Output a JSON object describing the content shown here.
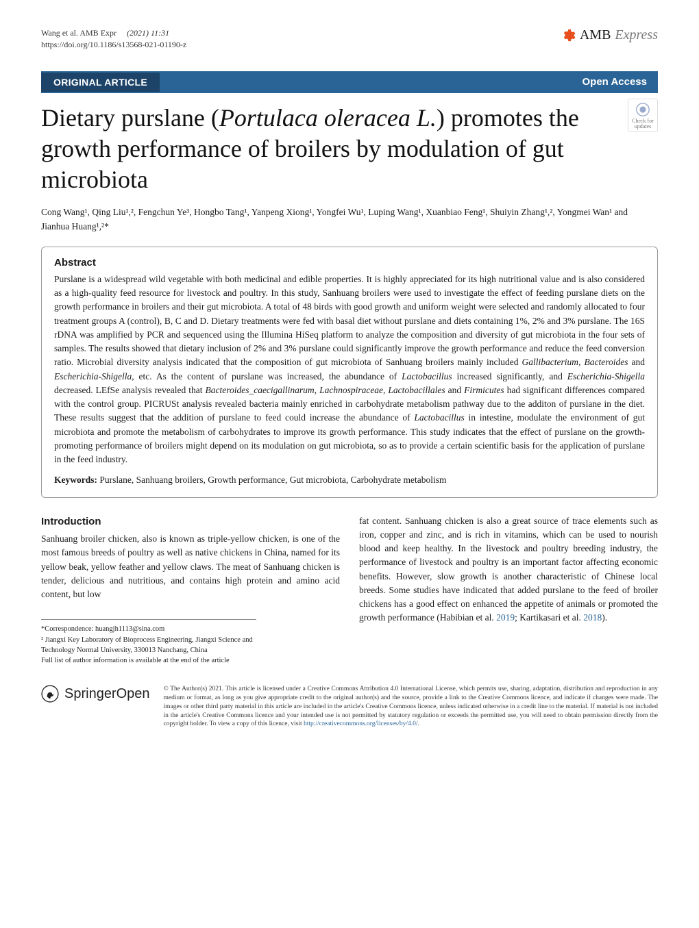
{
  "header": {
    "running_head": "Wang et al. AMB Expr",
    "year_volume": "(2021) 11:31",
    "doi": "https://doi.org/10.1186/s13568-021-01190-z",
    "journal_name_a": "AMB",
    "journal_name_b": "Express"
  },
  "band": {
    "section_label": "ORIGINAL ARTICLE",
    "open_access": "Open Access"
  },
  "title": {
    "pre": "Dietary purslane (",
    "italic": "Portulaca oleracea L.",
    "post": ") promotes the growth performance of broilers by modulation of gut microbiota"
  },
  "updates_badge": "Check for updates",
  "authors": "Cong Wang¹, Qing Liu¹,², Fengchun Ye³, Hongbo Tang¹, Yanpeng Xiong¹, Yongfei Wu¹, Luping Wang¹, Xuanbiao Feng¹, Shuiyin Zhang¹,², Yongmei Wan¹ and Jianhua Huang¹,²*",
  "abstract": {
    "heading": "Abstract",
    "text_parts": [
      {
        "t": "Purslane is a widespread wild vegetable with both medicinal and edible properties. It is highly appreciated for its high nutritional value and is also considered as a high-quality feed resource for livestock and poultry. In this study, Sanhuang broilers were used to investigate the effect of feeding purslane diets on the growth performance in broilers and their gut microbiota. A total of 48 birds with good growth and uniform weight were selected and randomly allocated to four treatment groups A (control), B, C and D. Dietary treatments were fed with basal diet without purslane and diets containing 1%, 2% and 3% purslane. The 16S rDNA was amplified by PCR and sequenced using the Illumina HiSeq platform to analyze the composition and diversity of gut microbiota in the four sets of samples. The results showed that dietary inclusion of 2% and 3% purslane could significantly improve the growth performance and reduce the feed conversion ratio. Microbial diversity analysis indicated that the composition of gut microbiota of Sanhuang broilers mainly included ",
        "i": false
      },
      {
        "t": "Gallibacterium",
        "i": true
      },
      {
        "t": ", ",
        "i": false
      },
      {
        "t": "Bacteroides",
        "i": true
      },
      {
        "t": " and ",
        "i": false
      },
      {
        "t": "Escherichia-Shigella",
        "i": true
      },
      {
        "t": ", etc. As the content of purslane was increased, the abundance of ",
        "i": false
      },
      {
        "t": "Lactobacillus",
        "i": true
      },
      {
        "t": " increased significantly, and ",
        "i": false
      },
      {
        "t": "Escherichia-Shigella",
        "i": true
      },
      {
        "t": " decreased. LEfSe analysis revealed that ",
        "i": false
      },
      {
        "t": "Bacteroides_caecigallinarum",
        "i": true
      },
      {
        "t": ", ",
        "i": false
      },
      {
        "t": "Lachnospiraceae",
        "i": true
      },
      {
        "t": ", ",
        "i": false
      },
      {
        "t": "Lactobacillales",
        "i": true
      },
      {
        "t": " and ",
        "i": false
      },
      {
        "t": "Firmicutes",
        "i": true
      },
      {
        "t": " had significant differences compared with the control group. PICRUSt analysis revealed bacteria mainly enriched in carbohydrate metabolism pathway due to the additon of purslane in the diet. These results suggest that the addition of purslane to feed could increase the abundance of ",
        "i": false
      },
      {
        "t": "Lactobacillus",
        "i": true
      },
      {
        "t": " in intestine, modulate the environment of gut microbiota and promote the metabolism of carbohydrates to improve its growth performance. This study indicates that the effect of purslane on the growth-promoting performance of broilers might depend on its modulation on gut microbiota, so as to provide a certain scientific basis for the application of purslane in the feed industry.",
        "i": false
      }
    ],
    "keywords_label": "Keywords:",
    "keywords": "Purslane, Sanhuang broilers, Growth performance, Gut microbiota, Carbohydrate metabolism"
  },
  "intro": {
    "heading": "Introduction",
    "col1": "Sanhuang broiler chicken, also is known as triple-yellow chicken, is one of the most famous breeds of poultry as well as native chickens in China, named for its yellow beak, yellow feather and yellow claws. The meat of Sanhuang chicken is tender, delicious and nutritious, and contains high protein and amino acid content, but low",
    "col2_a": "fat content. Sanhuang chicken is also a great source of trace elements such as iron, copper and zinc, and is rich in vitamins, which can be used to nourish blood and keep healthy. In the livestock and poultry breeding industry, the performance of livestock and poultry is an important factor affecting economic benefits. However, slow growth is another characteristic of Chinese local breeds. Some studies have indicated that added purslane to the feed of broiler chickens has a good effect on enhanced the appetite of animals or promoted the growth performance (Habibian et al. ",
    "ref1": "2019",
    "col2_b": "; Kartikasari et al. ",
    "ref2": "2018",
    "col2_c": ")."
  },
  "footnotes": {
    "correspondence": "*Correspondence:  huangjh1113@sina.com",
    "affiliation": "² Jiangxi Key Laboratory of Bioprocess Engineering, Jiangxi Science and Technology Normal University, 330013 Nanchang, China",
    "full_list": "Full list of author information is available at the end of the article"
  },
  "footer": {
    "springer": "Springer",
    "open": "Open",
    "license_a": "© The Author(s) 2021. This article is licensed under a Creative Commons Attribution 4.0 International License, which permits use, sharing, adaptation, distribution and reproduction in any medium or format, as long as you give appropriate credit to the original author(s) and the source, provide a link to the Creative Commons licence, and indicate if changes were made. The images or other third party material in this article are included in the article's Creative Commons licence, unless indicated otherwise in a credit line to the material. If material is not included in the article's Creative Commons licence and your intended use is not permitted by statutory regulation or exceeds the permitted use, you will need to obtain permission directly from the copyright holder. To view a copy of this licence, visit ",
    "license_link1": "http://creativecommons.org/licenses/by/4.0/",
    "license_b": "."
  },
  "colors": {
    "band_bg": "#2a6496",
    "band_dark": "#1d4468",
    "accent_orange": "#e84e1c",
    "link": "#2a6496"
  }
}
